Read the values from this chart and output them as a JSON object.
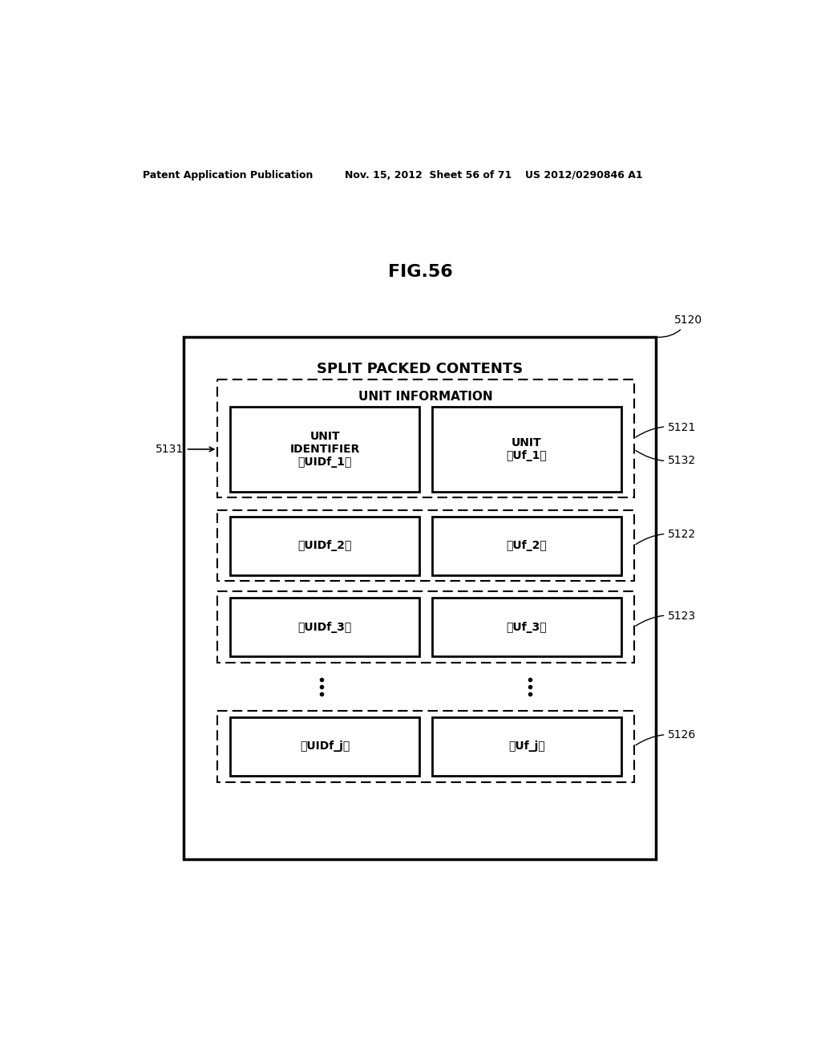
{
  "fig_title": "FIG.56",
  "header_text_left": "Patent Application Publication",
  "header_text_mid": "Nov. 15, 2012  Sheet 56 of 71",
  "header_text_right": "US 2012/0290846 A1",
  "outer_box_label": "5120",
  "outer_box_title": "SPLIT PACKED CONTENTS",
  "rows": [
    {
      "label": "5121",
      "left_label": "5131",
      "right_label": "5132",
      "header": "UNIT INFORMATION",
      "left_text": "UNIT\nIDENTIFIER\n「UIDf_1」",
      "right_text": "UNIT\n「Uf_1」",
      "has_header": true
    },
    {
      "label": "5122",
      "left_text": "「UIDf_2」",
      "right_text": "「Uf_2」",
      "has_header": false
    },
    {
      "label": "5123",
      "left_text": "「UIDf_3」",
      "right_text": "「Uf_3」",
      "has_header": false
    },
    {
      "label": "5126",
      "left_text": "「UIDf_j」",
      "right_text": "「Uf_j」",
      "has_header": false
    }
  ],
  "bg_color": "#ffffff",
  "box_edge_color": "#000000",
  "text_color": "#000000"
}
